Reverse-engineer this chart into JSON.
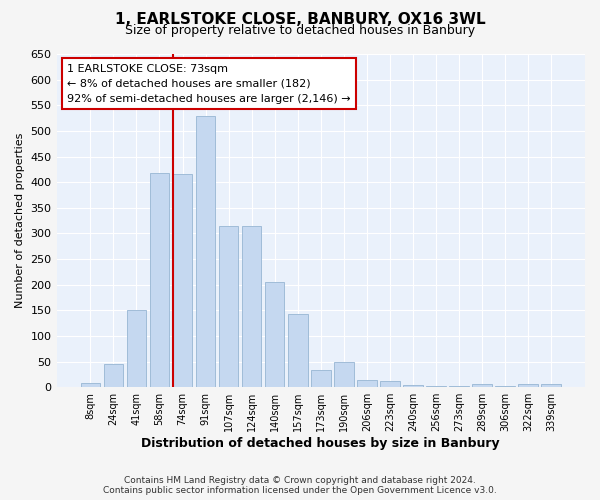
{
  "title": "1, EARLSTOKE CLOSE, BANBURY, OX16 3WL",
  "subtitle": "Size of property relative to detached houses in Banbury",
  "xlabel": "Distribution of detached houses by size in Banbury",
  "ylabel": "Number of detached properties",
  "bar_color": "#c5d8f0",
  "bar_edgecolor": "#a0bcd8",
  "bg_color": "#eaf1fb",
  "grid_color": "#ffffff",
  "vline_color": "#cc0000",
  "vline_pos": 3.57,
  "categories": [
    "8sqm",
    "24sqm",
    "41sqm",
    "58sqm",
    "74sqm",
    "91sqm",
    "107sqm",
    "124sqm",
    "140sqm",
    "157sqm",
    "173sqm",
    "190sqm",
    "206sqm",
    "223sqm",
    "240sqm",
    "256sqm",
    "273sqm",
    "289sqm",
    "306sqm",
    "322sqm",
    "339sqm"
  ],
  "values": [
    8,
    45,
    150,
    418,
    415,
    530,
    315,
    315,
    205,
    143,
    33,
    50,
    14,
    13,
    5,
    2,
    2,
    7,
    2,
    7,
    7
  ],
  "ylim": [
    0,
    650
  ],
  "yticks": [
    0,
    50,
    100,
    150,
    200,
    250,
    300,
    350,
    400,
    450,
    500,
    550,
    600,
    650
  ],
  "annotation_text": "1 EARLSTOKE CLOSE: 73sqm\n← 8% of detached houses are smaller (182)\n92% of semi-detached houses are larger (2,146) →",
  "annotation_box_color": "#ffffff",
  "annotation_box_edgecolor": "#cc0000",
  "footer_line1": "Contains HM Land Registry data © Crown copyright and database right 2024.",
  "footer_line2": "Contains public sector information licensed under the Open Government Licence v3.0."
}
